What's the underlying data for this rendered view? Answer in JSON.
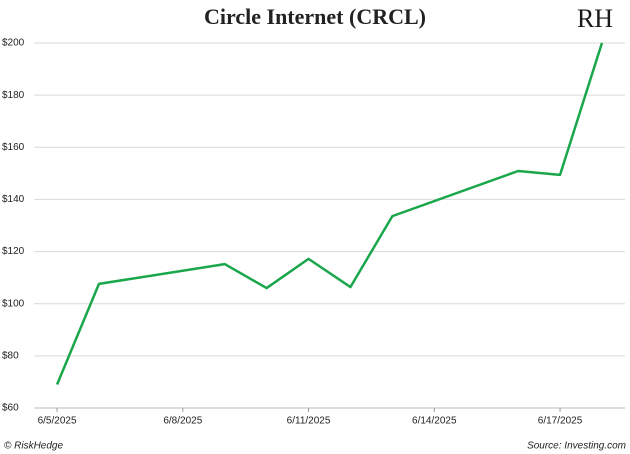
{
  "chart_data": {
    "type": "line",
    "title": "Circle Internet (CRCL)",
    "logo": "RH",
    "x": [
      "6/5/2025",
      "6/6/2025",
      "6/9/2025",
      "6/10/2025",
      "6/11/2025",
      "6/12/2025",
      "6/13/2025",
      "6/16/2025",
      "6/17/2025",
      "6/18/2025"
    ],
    "series": [
      {
        "name": "CRCL",
        "color": "#1aa64a",
        "values": [
          69,
          107.6,
          115.2,
          106,
          117.2,
          106.4,
          133.6,
          150.9,
          149.4,
          200
        ]
      }
    ],
    "xlim": [
      "6/5/2025",
      "6/18/2025"
    ],
    "xticks": [
      "6/5/2025",
      "6/8/2025",
      "6/11/2025",
      "6/14/2025",
      "6/17/2025"
    ],
    "ylim": [
      60,
      200
    ],
    "yticks": [
      {
        "value": 60,
        "label": "$60"
      },
      {
        "value": 80,
        "label": "$80"
      },
      {
        "value": 100,
        "label": "$100"
      },
      {
        "value": 120,
        "label": "$120"
      },
      {
        "value": 140,
        "label": "$140"
      },
      {
        "value": 160,
        "label": "$160"
      },
      {
        "value": 180,
        "label": "$180"
      },
      {
        "value": 200,
        "label": "$200"
      }
    ],
    "grid": true,
    "credit": "© RiskHedge",
    "source": "Source: Investing.com"
  }
}
